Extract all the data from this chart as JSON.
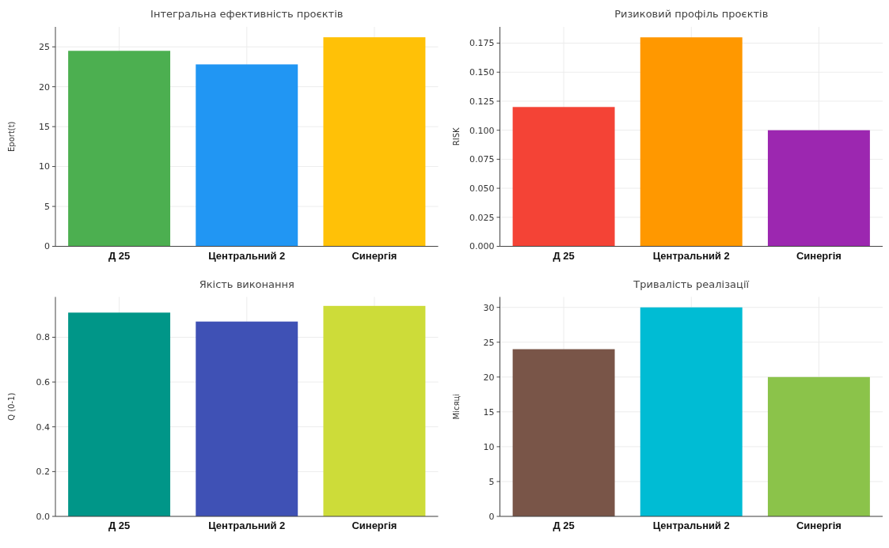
{
  "chart_data": [
    {
      "type": "bar",
      "title": "Інтегральна ефективність проєктів",
      "ylabel": "Eport(t)",
      "categories": [
        "Д 25",
        "Центральний 2",
        "Синергія"
      ],
      "values": [
        24.5,
        22.8,
        26.2
      ],
      "colors": [
        "#4caf50",
        "#2196f3",
        "#ffc107"
      ],
      "ylim": [
        0,
        27.5
      ],
      "yticks": [
        0,
        5,
        10,
        15,
        20,
        25
      ],
      "grid": true
    },
    {
      "type": "bar",
      "title": "Ризиковий профіль проєктів",
      "ylabel": "RISK",
      "categories": [
        "Д 25",
        "Центральний 2",
        "Синергія"
      ],
      "values": [
        0.12,
        0.18,
        0.1
      ],
      "colors": [
        "#f44336",
        "#ff9800",
        "#9c27b0"
      ],
      "ylim": [
        0,
        0.189
      ],
      "yticks": [
        {
          "value": 0,
          "label": "0.000"
        },
        {
          "value": 0.025,
          "label": "0.025"
        },
        {
          "value": 0.05,
          "label": "0.050"
        },
        {
          "value": 0.075,
          "label": "0.075"
        },
        {
          "value": 0.1,
          "label": "0.100"
        },
        {
          "value": 0.125,
          "label": "0.125"
        },
        {
          "value": 0.15,
          "label": "0.150"
        },
        {
          "value": 0.175,
          "label": "0.175"
        }
      ],
      "grid": true
    },
    {
      "type": "bar",
      "title": "Якість виконання",
      "ylabel": "Q (0-1)",
      "categories": [
        "Д 25",
        "Центральний 2",
        "Синергія"
      ],
      "values": [
        0.91,
        0.87,
        0.94
      ],
      "colors": [
        "#009688",
        "#3f51b5",
        "#cddc39"
      ],
      "ylim": [
        0,
        0.98
      ],
      "yticks": [
        {
          "value": 0,
          "label": "0.0"
        },
        0.2,
        0.4,
        0.6,
        0.8
      ],
      "grid": true
    },
    {
      "type": "bar",
      "title": "Тривалість реалізації",
      "ylabel": "Місяці",
      "categories": [
        "Д 25",
        "Центральний 2",
        "Синергія"
      ],
      "values": [
        24,
        30,
        20
      ],
      "colors": [
        "#795548",
        "#00bcd4",
        "#8bc34a"
      ],
      "ylim": [
        0,
        31.5
      ],
      "yticks": [
        0,
        5,
        10,
        15,
        20,
        25,
        30
      ],
      "grid": true
    }
  ]
}
